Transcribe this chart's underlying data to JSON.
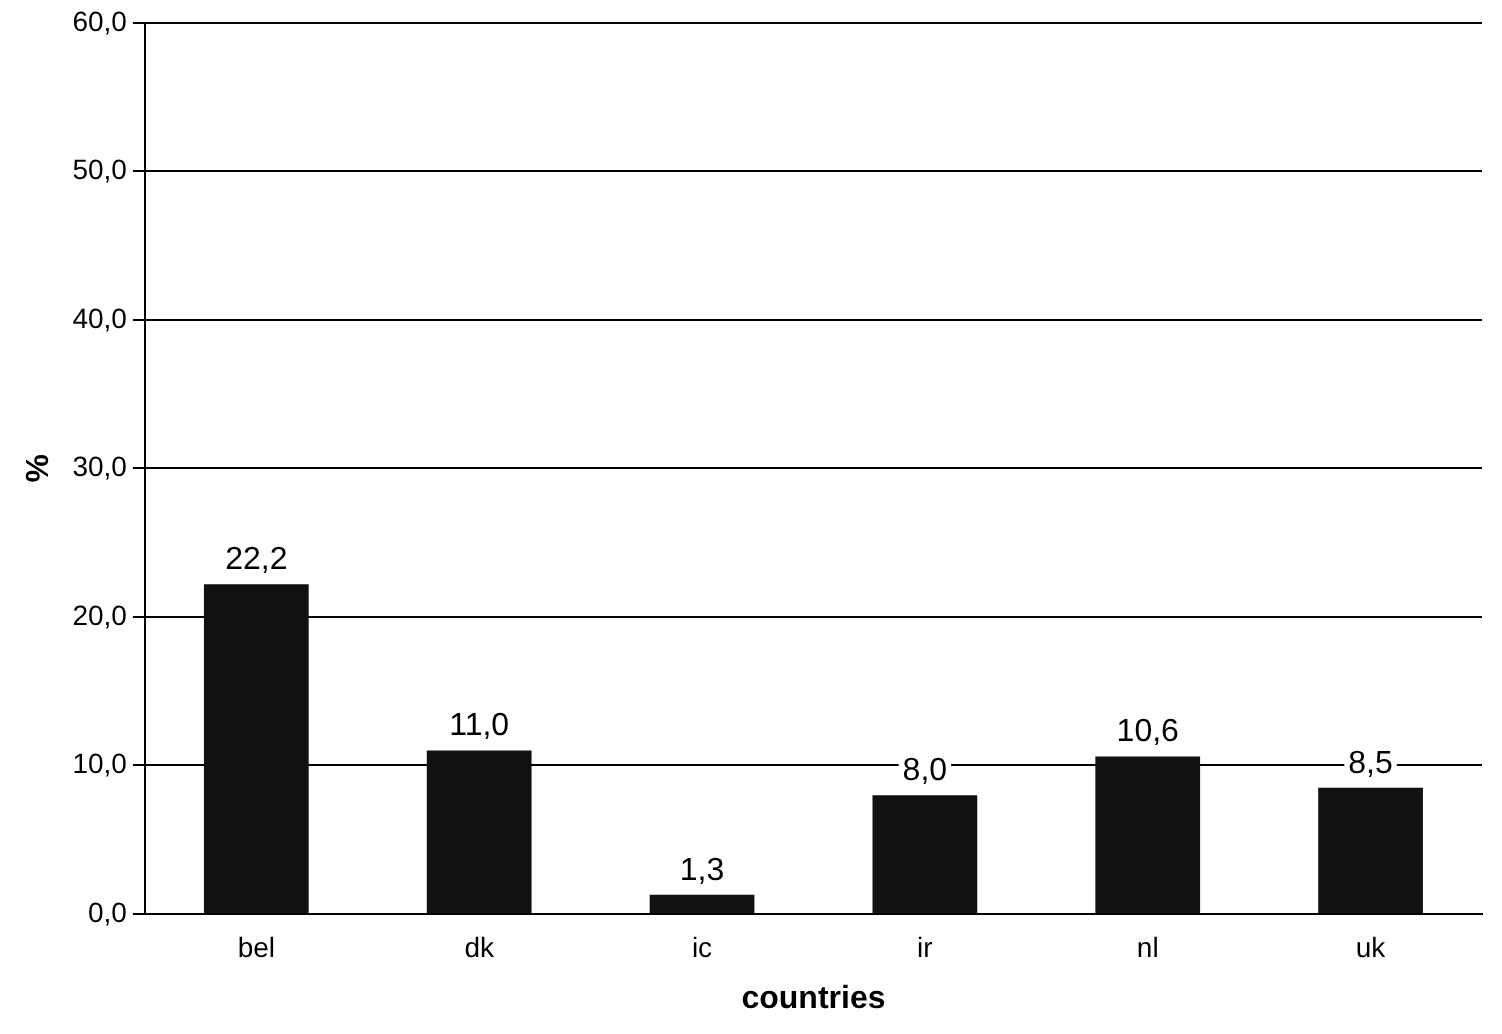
{
  "chart_data": {
    "type": "bar",
    "xlabel": "countries",
    "ylabel": "%",
    "categories": [
      "bel",
      "dk",
      "ic",
      "ir",
      "nl",
      "uk"
    ],
    "values": [
      22.2,
      11.0,
      1.3,
      8.0,
      10.6,
      8.5
    ],
    "value_labels": [
      "22,2",
      "11,0",
      "1,3",
      "8,0",
      "10,6",
      "8,5"
    ],
    "color": "#111111",
    "ylim": [
      0,
      60
    ],
    "yticks": [
      {
        "value": 0,
        "label": "0,0"
      },
      {
        "value": 10,
        "label": "10,0"
      },
      {
        "value": 20,
        "label": "20,0"
      },
      {
        "value": 30,
        "label": "30,0"
      },
      {
        "value": 40,
        "label": "40,0"
      },
      {
        "value": 50,
        "label": "50,0"
      },
      {
        "value": 60,
        "label": "60,0"
      }
    ],
    "grid": "y",
    "legend": false
  }
}
